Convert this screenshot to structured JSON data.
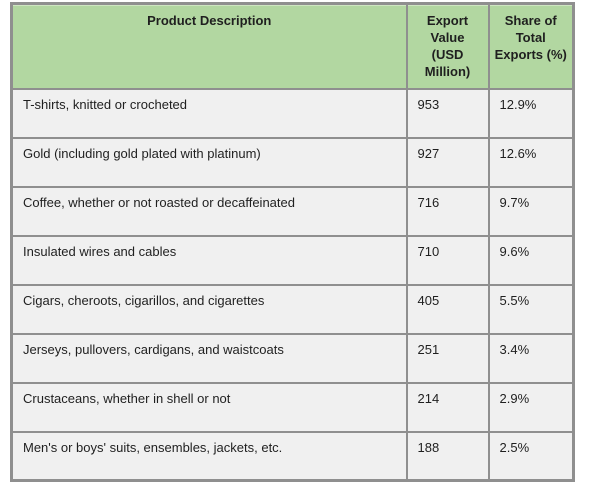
{
  "colors": {
    "header_bg": "#b2d7a1",
    "row_bg": "#f0f0f0",
    "border": "#8f8f8f",
    "text": "#1f1f1f",
    "page_bg": "#ffffff"
  },
  "table": {
    "headers": [
      {
        "label": "Product Description"
      },
      {
        "label": "Export\nValue\n(USD\nMillion)"
      },
      {
        "label": "Share of\nTotal\nExports (%)"
      }
    ],
    "rows": [
      {
        "description": "T-shirts, knitted or crocheted",
        "export_value": "953",
        "share": "12.9%"
      },
      {
        "description": "Gold (including gold plated with platinum)",
        "export_value": "927",
        "share": "12.6%"
      },
      {
        "description": "Coffee, whether or not roasted or decaffeinated",
        "export_value": "716",
        "share": "9.7%"
      },
      {
        "description": "Insulated wires and cables",
        "export_value": "710",
        "share": "9.6%"
      },
      {
        "description": "Cigars, cheroots, cigarillos, and cigarettes",
        "export_value": "405",
        "share": "5.5%"
      },
      {
        "description": "Jerseys, pullovers, cardigans, and waistcoats",
        "export_value": "251",
        "share": "3.4%"
      },
      {
        "description": "Crustaceans, whether in shell or not",
        "export_value": "214",
        "share": "2.9%"
      },
      {
        "description": "Men's or boys' suits, ensembles, jackets, etc.",
        "export_value": "188",
        "share": "2.5%"
      }
    ]
  }
}
